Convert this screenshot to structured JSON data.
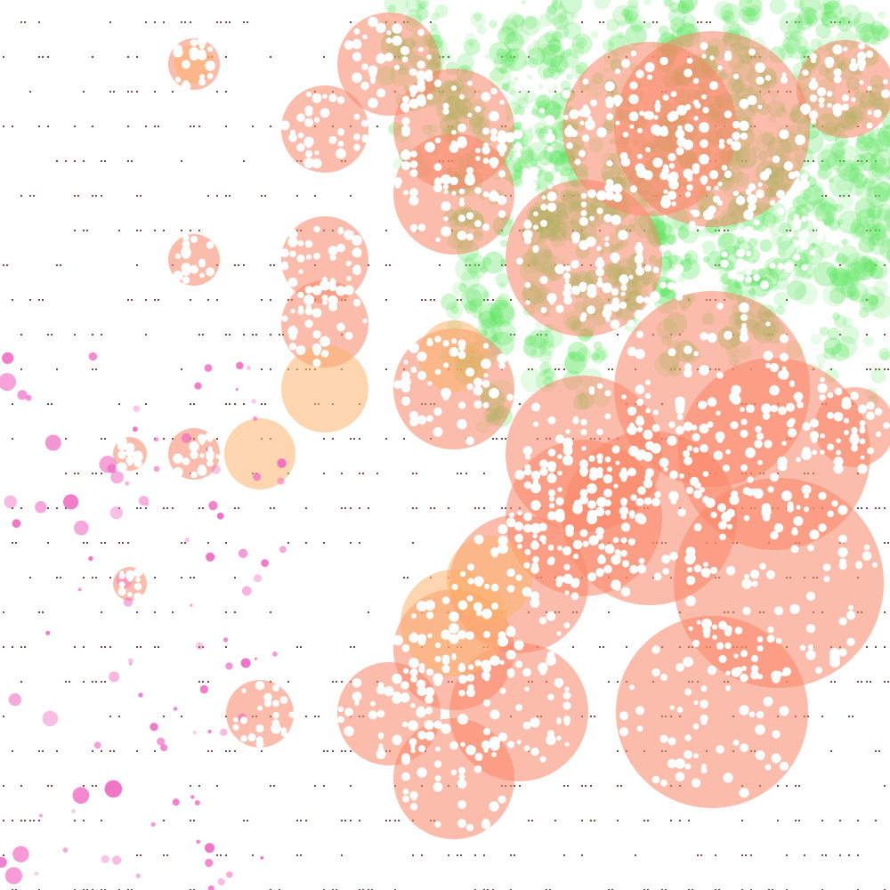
{
  "canvas": {
    "background": "#ffffff"
  },
  "palette": {
    "salmon": "#fa8566",
    "orange": "#fbb26c",
    "green": "#5de65f",
    "pink": "#f06ac2",
    "dot": "#4a1a12",
    "hole": "#ffffff"
  },
  "layers": [
    {
      "name": "dot-grid",
      "color": "dot"
    },
    {
      "name": "green-bubble-cloud",
      "color": "green"
    },
    {
      "name": "salmon-circles",
      "color": "salmon"
    },
    {
      "name": "orange-circles",
      "color": "orange"
    },
    {
      "name": "pink-scatter",
      "color": "pink"
    },
    {
      "name": "white-speckles",
      "color": "hole"
    }
  ]
}
